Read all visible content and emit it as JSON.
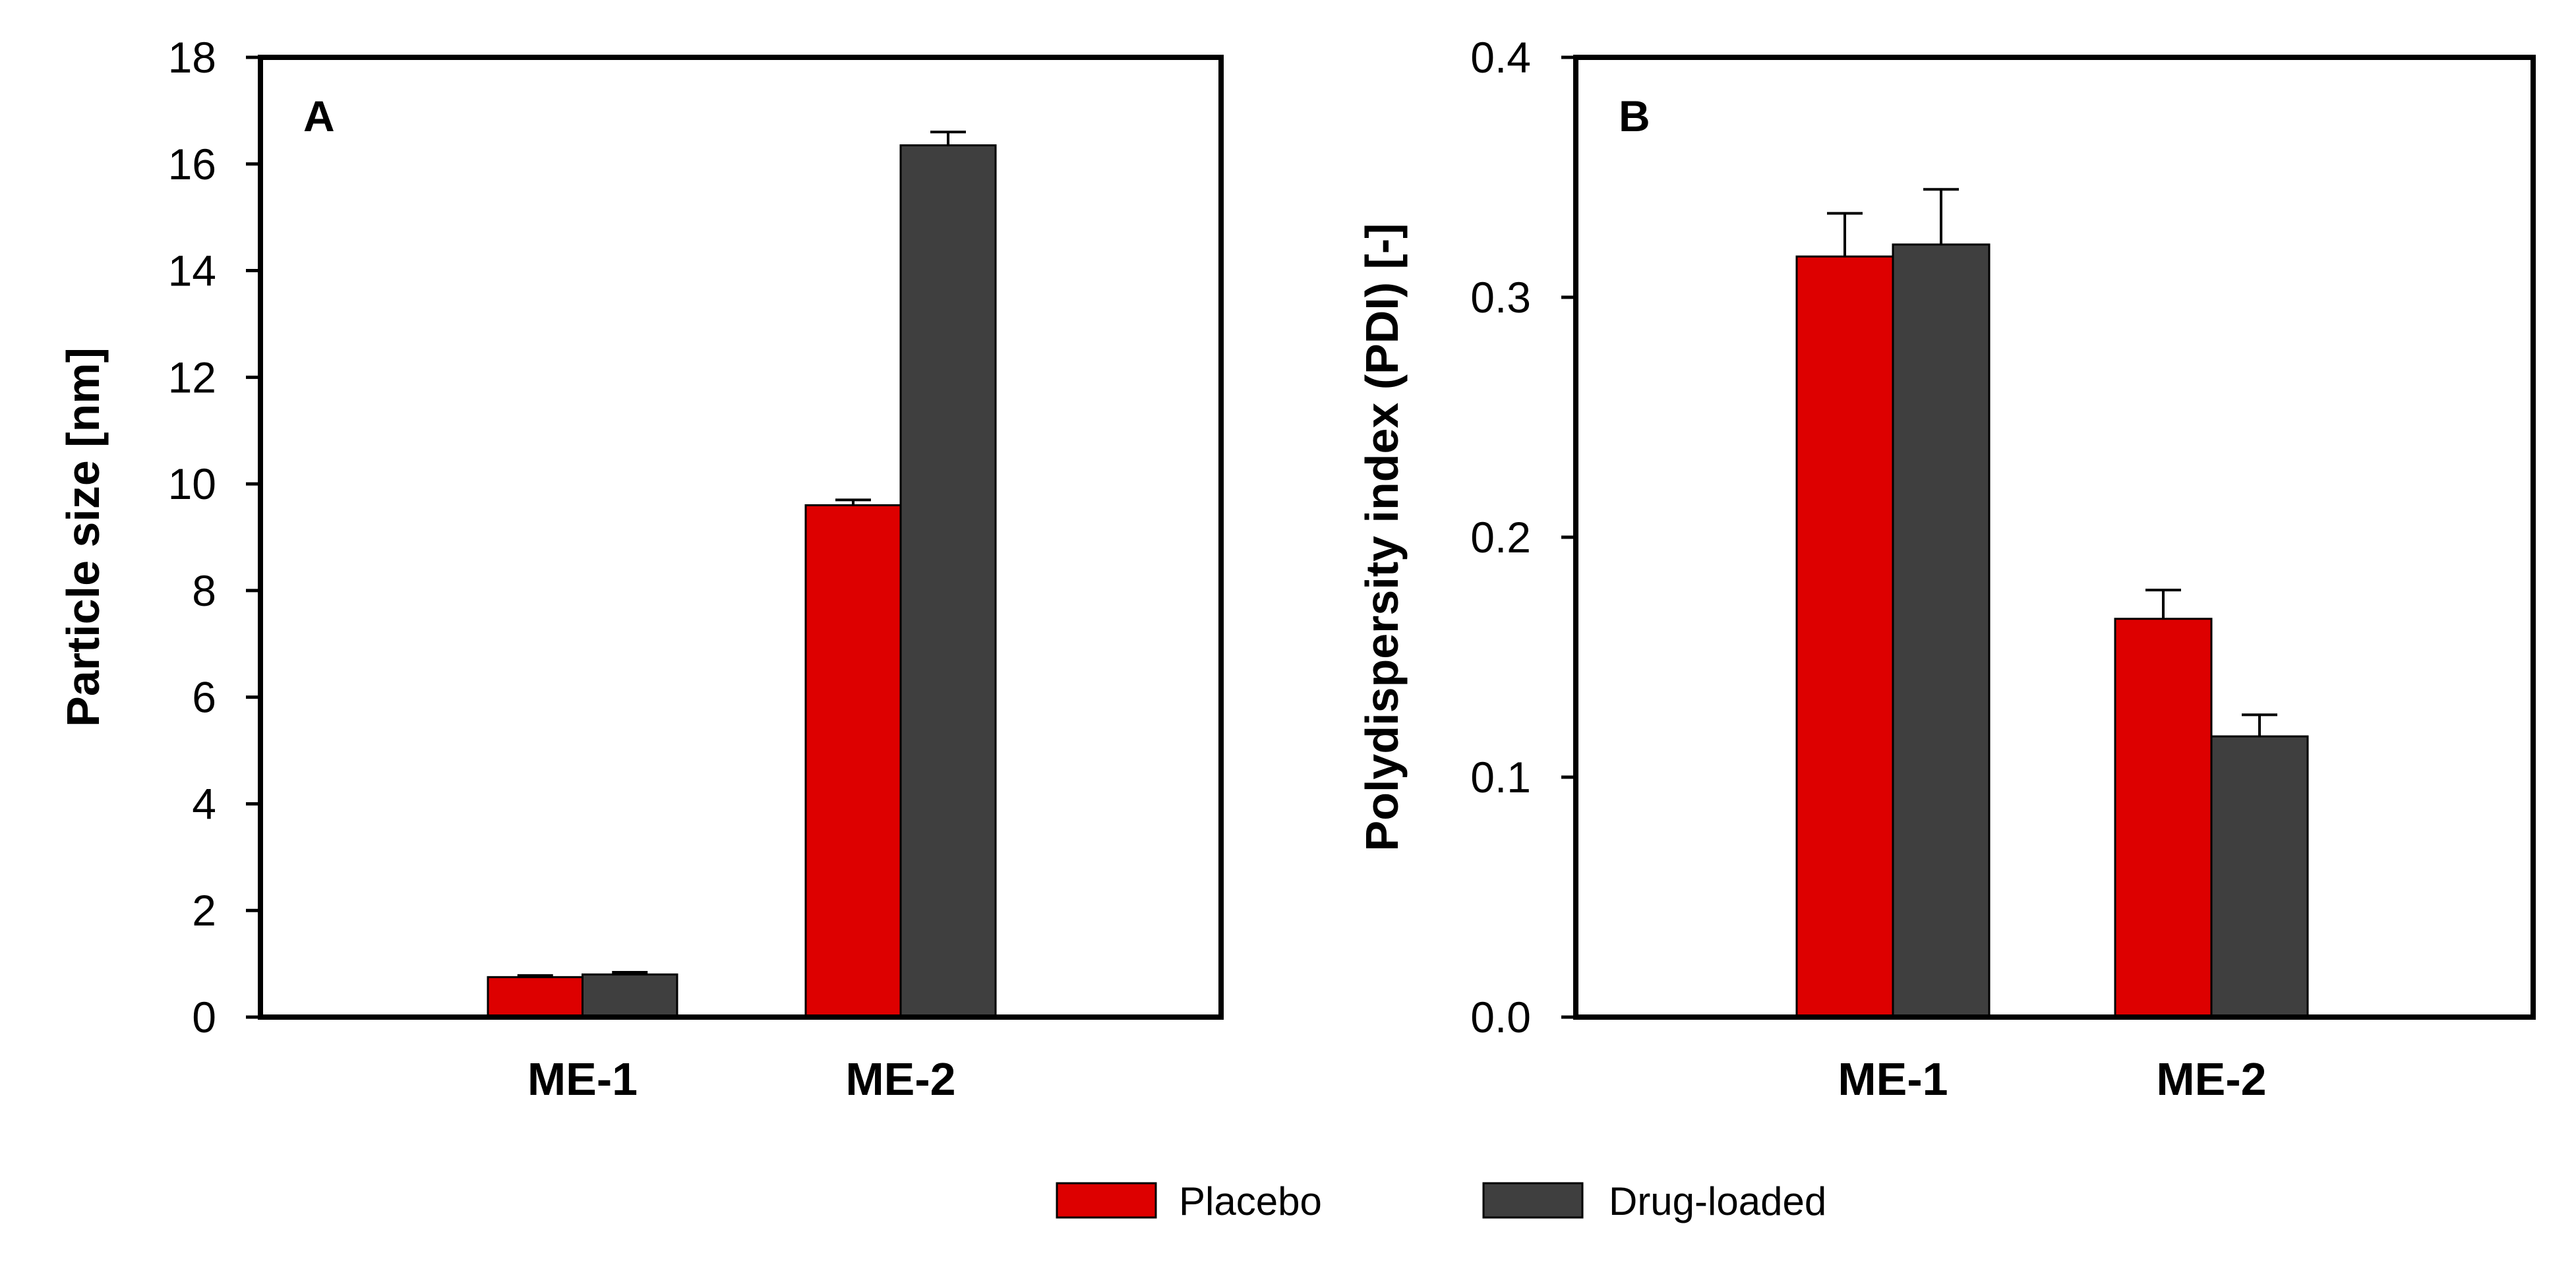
{
  "colors": {
    "placebo": "#dd0000",
    "drug_loaded": "#3f3f3f",
    "axis": "#000000"
  },
  "legend": {
    "position": "bottom-center",
    "items": [
      {
        "label": "Placebo",
        "color": "#dd0000"
      },
      {
        "label": "Drug-loaded",
        "color": "#3f3f3f"
      }
    ]
  },
  "chart_data": [
    {
      "type": "bar",
      "panel": "A",
      "title": "",
      "xlabel": "",
      "ylabel": "Particle size [nm]",
      "ylim": [
        0,
        18
      ],
      "yticks": [
        0,
        2,
        4,
        6,
        8,
        10,
        12,
        14,
        16,
        18
      ],
      "ytick_labels": [
        "0",
        "2",
        "4",
        "6",
        "8",
        "10",
        "12",
        "14",
        "16",
        "18"
      ],
      "categories": [
        "ME-1",
        "ME-2"
      ],
      "series": [
        {
          "name": "Placebo",
          "color": "#dd0000",
          "values": [
            0.75,
            9.6
          ],
          "errors": [
            0.03,
            0.1
          ]
        },
        {
          "name": "Drug-loaded",
          "color": "#3f3f3f",
          "values": [
            0.8,
            16.35
          ],
          "errors": [
            0.04,
            0.25
          ]
        }
      ],
      "grid": false
    },
    {
      "type": "bar",
      "panel": "B",
      "title": "",
      "xlabel": "",
      "ylabel": "Polydispersity index (PDI) [-]",
      "ylim": [
        0,
        0.4
      ],
      "yticks": [
        0,
        0.1,
        0.2,
        0.3,
        0.4
      ],
      "ytick_labels": [
        "0.0",
        "0.1",
        "0.2",
        "0.3",
        "0.4"
      ],
      "categories": [
        "ME-1",
        "ME-2"
      ],
      "series": [
        {
          "name": "Placebo",
          "color": "#dd0000",
          "values": [
            0.317,
            0.166
          ],
          "errors": [
            0.018,
            0.012
          ]
        },
        {
          "name": "Drug-loaded",
          "color": "#3f3f3f",
          "values": [
            0.322,
            0.117
          ],
          "errors": [
            0.023,
            0.009
          ]
        }
      ],
      "grid": false
    }
  ]
}
